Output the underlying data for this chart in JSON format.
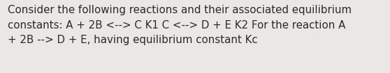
{
  "text": "Consider the following reactions and their associated equilibrium\nconstants: A + 2B <--> C K1 C <--> D + E K2 For the reaction A\n+ 2B --> D + E, having equilibrium constant Kc",
  "background_color": "#ece7e7",
  "text_color": "#2a2a2a",
  "font_size": 10.8,
  "fig_width": 5.58,
  "fig_height": 1.05,
  "dpi": 100
}
